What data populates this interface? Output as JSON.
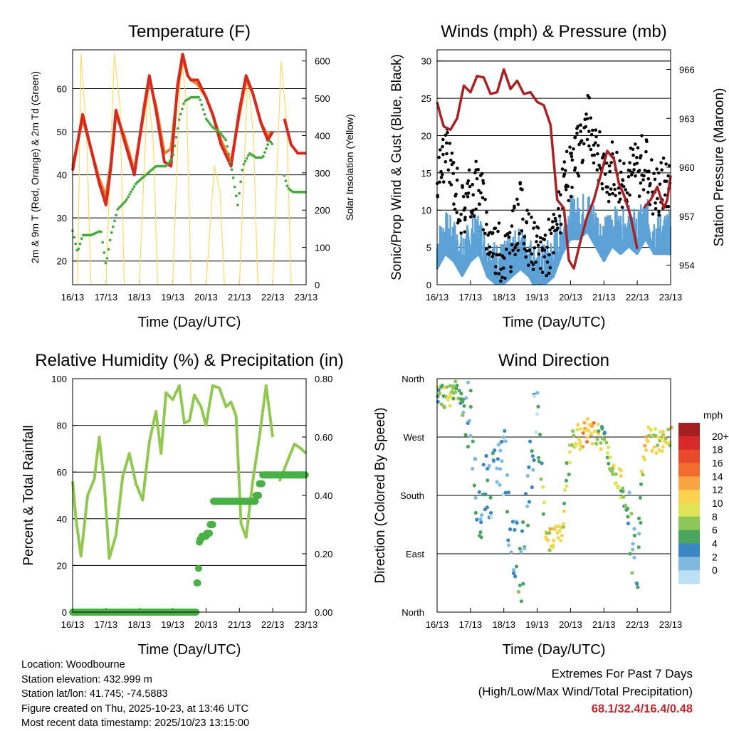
{
  "colors": {
    "temp_2m": "#d42a20",
    "temp_9m": "#f07d2a",
    "dewpoint": "#4aaa42",
    "solar": "#ffd966",
    "wind_gust": "#000000",
    "wind_sonic": "#5da2d6",
    "pressure": "#a82225",
    "rh": "#92c852",
    "precip": "#49b045"
  },
  "time_ticks": [
    "16/13",
    "17/13",
    "18/13",
    "19/13",
    "20/13",
    "21/13",
    "22/13",
    "23/13"
  ],
  "charts": {
    "temperature": {
      "title": "Temperature (F)",
      "xlabel": "Time (Day/UTC)",
      "ylabel_left": "2m & 9m T (Red, Orange) & 2m Td (Green)",
      "ylabel_right": "Solar Insolation (Yellow)",
      "left_ticks": [
        "20",
        "30",
        "40",
        "50",
        "60"
      ],
      "right_ticks": [
        "0",
        "100",
        "200",
        "300",
        "400",
        "500",
        "600"
      ]
    },
    "winds": {
      "title": "Winds (mph) & Pressure (mb)",
      "xlabel": "Time (Day/UTC)",
      "ylabel_left": "Sonic/Prop Wind & Gust (Blue, Black)",
      "ylabel_right": "Station Pressure (Maroon)",
      "left_ticks": [
        "0",
        "5",
        "10",
        "15",
        "20",
        "25",
        "30"
      ],
      "right_ticks": [
        "954",
        "957",
        "960",
        "963",
        "966"
      ]
    },
    "humidity": {
      "title": "Relative Humidity (%) & Precipitation (in)",
      "xlabel": "Time (Day/UTC)",
      "ylabel_left": "Percent & Total Rainfall",
      "left_ticks": [
        "0",
        "20",
        "40",
        "60",
        "80",
        "100"
      ],
      "right_ticks": [
        "0.00",
        "0.20",
        "0.40",
        "0.60",
        "0.80"
      ]
    },
    "direction": {
      "title": "Wind Direction",
      "xlabel": "Time (Day/UTC)",
      "ylabel_left": "Direction (Colored By Speed)",
      "dir_ticks": [
        "North",
        "West",
        "South",
        "East",
        "North"
      ],
      "legend_title": "mph",
      "legend_labels": [
        "20+",
        "18",
        "16",
        "14",
        "12",
        "10",
        "8",
        "6",
        "4",
        "2",
        "0"
      ],
      "legend_colors": [
        "#a51e22",
        "#d7282a",
        "#ea4a2c",
        "#f26b2f",
        "#f8a442",
        "#fbd250",
        "#dfe457",
        "#8cc657",
        "#4aa65e",
        "#3c86c2",
        "#7fb9e0",
        "#bde0f5"
      ]
    }
  },
  "chart_data": [
    {
      "type": "line",
      "title": "Temperature (F)",
      "xlabel": "Time (Day/UTC)",
      "ylabel": "2m & 9m T (Red, Orange) & 2m Td (Green)",
      "y2label": "Solar Insolation (Yellow)",
      "xlim": [
        0,
        7
      ],
      "ylim": [
        14.5,
        69
      ],
      "y2lim": [
        0,
        630
      ],
      "series": [
        {
          "name": "2m T",
          "axis": "left",
          "x": [
            0,
            0.3,
            0.55,
            0.8,
            1.0,
            1.15,
            1.3,
            1.55,
            1.85,
            2.15,
            2.3,
            2.5,
            2.75,
            2.95,
            3.15,
            3.3,
            3.45,
            3.55,
            3.75,
            4.0,
            4.2,
            4.45,
            4.75,
            5.0,
            5.2,
            5.4,
            5.65,
            5.85,
            6.0,
            6.2,
            6.35,
            6.55,
            6.75,
            7.0
          ],
          "y": [
            41,
            54,
            46,
            38,
            33,
            42,
            55,
            48,
            40,
            56,
            63,
            55,
            43,
            42,
            61,
            68,
            63,
            62,
            62,
            58,
            54,
            47,
            42,
            55,
            63,
            59,
            52,
            48,
            50,
            null,
            53,
            47,
            45,
            45
          ]
        },
        {
          "name": "9m T",
          "axis": "left",
          "x": [
            0,
            0.3,
            0.55,
            0.8,
            1.0,
            1.15,
            1.3,
            1.55,
            1.85,
            2.15,
            2.3,
            2.5,
            2.75,
            2.95,
            3.15,
            3.3,
            3.45,
            3.55,
            3.75,
            4.0,
            4.2,
            4.45,
            4.75,
            5.0,
            5.2,
            5.4,
            5.65,
            5.85,
            6.0
          ],
          "y": [
            42,
            53,
            46,
            39,
            35,
            43,
            54,
            49,
            41,
            55,
            62,
            56,
            45,
            46,
            60,
            67,
            63,
            62,
            61,
            58,
            54,
            48,
            43,
            54,
            62,
            59,
            52,
            49,
            50
          ]
        },
        {
          "name": "2m Td",
          "axis": "left",
          "x": [
            0,
            0.15,
            0.3,
            0.55,
            0.85,
            1.0,
            1.15,
            1.35,
            1.6,
            1.9,
            2.2,
            2.5,
            2.8,
            3.0,
            3.2,
            3.35,
            3.55,
            3.8,
            4.0,
            4.2,
            4.4,
            4.6,
            4.8,
            4.95,
            5.1,
            5.3,
            5.5,
            5.7,
            5.9,
            6.0,
            null,
            6.3,
            6.45,
            6.6,
            6.8,
            7.0
          ],
          "y": [
            27,
            22,
            26,
            26,
            27,
            19,
            26,
            32,
            34,
            38,
            40,
            42,
            42,
            44,
            53,
            57,
            58,
            58,
            53,
            51,
            50,
            48,
            40,
            33,
            42,
            45,
            44,
            44,
            48,
            47,
            null,
            41,
            37,
            36,
            36,
            36
          ]
        },
        {
          "name": "Solar Insolation",
          "axis": "right",
          "x": [
            0.15,
            0.25,
            0.42,
            0.55,
            1.0,
            1.25,
            1.42,
            1.55,
            2.0,
            2.25,
            2.42,
            2.55,
            3.0,
            3.25,
            3.42,
            3.55,
            4.0,
            4.25,
            4.42,
            4.55,
            5.0,
            5.25,
            5.42,
            5.55,
            6.0,
            6.25,
            6.42,
            6.55
          ],
          "y": [
            0,
            620,
            400,
            0,
            0,
            620,
            480,
            0,
            0,
            530,
            380,
            0,
            0,
            620,
            480,
            0,
            0,
            320,
            250,
            0,
            0,
            560,
            400,
            0,
            0,
            600,
            430,
            0
          ]
        }
      ]
    },
    {
      "type": "scatter",
      "title": "Winds (mph) & Pressure (mb)",
      "xlabel": "Time (Day/UTC)",
      "ylabel": "Sonic/Prop Wind & Gust (Blue, Black)",
      "y2label": "Station Pressure (Maroon)",
      "xlim": [
        0,
        7
      ],
      "ylim": [
        0,
        31.5
      ],
      "y2lim": [
        952.8,
        967.2
      ],
      "series": [
        {
          "name": "Gust",
          "axis": "left",
          "x": [
            0,
            0.25,
            0.5,
            0.75,
            1.0,
            1.25,
            1.5,
            1.75,
            2.0,
            2.25,
            2.5,
            2.75,
            3.0,
            3.25,
            3.5,
            3.75,
            4.0,
            4.25,
            4.5,
            4.75,
            5.0,
            5.25,
            5.5,
            5.75,
            6.0,
            6.25,
            6.5,
            6.75,
            7.0
          ],
          "y": [
            14,
            18,
            14,
            10,
            12,
            14,
            7,
            5,
            4,
            6,
            10,
            6,
            4,
            5,
            6,
            12,
            15,
            18,
            22,
            19,
            14,
            16,
            14,
            15,
            15,
            17,
            12,
            13,
            14
          ]
        },
        {
          "name": "Sonic/Prop Wind",
          "axis": "left",
          "x": [
            0,
            0.25,
            0.5,
            0.75,
            1.0,
            1.25,
            1.5,
            1.75,
            2.0,
            2.25,
            2.5,
            2.75,
            3.0,
            3.25,
            3.5,
            3.75,
            4.0,
            4.25,
            4.5,
            4.75,
            5.0,
            5.25,
            5.5,
            5.75,
            6.0,
            6.25,
            6.5,
            6.75,
            7.0
          ],
          "y": [
            5,
            7,
            6,
            4,
            6,
            7,
            4,
            3,
            3,
            4,
            5,
            4,
            2,
            3,
            4,
            7,
            9,
            9,
            10,
            8,
            6,
            8,
            7,
            8,
            7,
            9,
            7,
            7,
            7
          ]
        },
        {
          "name": "Station Pressure",
          "axis": "right",
          "x": [
            0,
            0.1,
            0.2,
            0.4,
            0.6,
            0.8,
            1.0,
            1.2,
            1.4,
            1.6,
            1.8,
            2.0,
            2.2,
            2.4,
            2.6,
            2.8,
            3.0,
            3.2,
            3.4,
            3.6,
            3.8,
            3.95,
            4.1,
            4.3,
            4.5,
            4.7,
            4.9,
            5.1,
            5.3,
            5.45,
            5.6,
            5.8,
            6.0,
            null,
            6.2,
            6.4,
            6.6,
            6.8,
            6.9,
            7.0
          ],
          "y": [
            964.0,
            963.2,
            962.5,
            962.3,
            963.0,
            965.0,
            964.6,
            965.6,
            965.5,
            964.5,
            964.6,
            966.0,
            964.8,
            965.3,
            964.5,
            964.6,
            964.0,
            963.8,
            962.6,
            958.0,
            957.5,
            954.3,
            953.8,
            955.5,
            957.0,
            958.0,
            959.5,
            961.0,
            960.5,
            959.0,
            958.3,
            957.0,
            955.0,
            null,
            957.5,
            958.0,
            958.8,
            957.5,
            958.0,
            959.5
          ]
        }
      ]
    },
    {
      "type": "line",
      "title": "Relative Humidity (%) & Precipitation (in)",
      "xlabel": "Time (Day/UTC)",
      "ylabel": "Percent & Total Rainfall",
      "xlim": [
        0,
        7
      ],
      "ylim": [
        0,
        100
      ],
      "y2lim": [
        0,
        0.8
      ],
      "series": [
        {
          "name": "Relative Humidity",
          "axis": "left",
          "x": [
            0,
            0.1,
            0.25,
            0.45,
            0.65,
            0.8,
            0.95,
            1.1,
            1.3,
            1.5,
            1.7,
            1.9,
            2.1,
            2.3,
            2.5,
            2.65,
            2.8,
            3.0,
            3.2,
            3.35,
            3.5,
            3.65,
            3.85,
            4.0,
            4.2,
            4.4,
            4.6,
            4.75,
            4.9,
            5.05,
            5.2,
            5.4,
            5.6,
            5.8,
            6.0,
            null,
            6.2,
            6.45,
            6.65,
            6.85,
            7.0
          ],
          "y": [
            56,
            40,
            24,
            50,
            57,
            75,
            55,
            23,
            33,
            58,
            68,
            55,
            48,
            73,
            86,
            68,
            94,
            91,
            97,
            81,
            82,
            93,
            88,
            80,
            97,
            96,
            88,
            90,
            84,
            38,
            32,
            56,
            75,
            97,
            75,
            null,
            56,
            65,
            72,
            70,
            68
          ]
        },
        {
          "name": "Total Precipitation",
          "axis": "right",
          "x": [
            0,
            3.65,
            3.7,
            3.72,
            3.75,
            3.78,
            3.8,
            3.85,
            4.0,
            4.1,
            4.2,
            4.4,
            5.0,
            5.2,
            5.5,
            5.6,
            5.7,
            5.9,
            7.0
          ],
          "y": [
            0,
            0,
            0.05,
            0.1,
            0.15,
            0.24,
            0.25,
            0.26,
            0.27,
            0.3,
            0.38,
            0.38,
            0.38,
            0.38,
            0.4,
            0.44,
            0.47,
            0.47,
            0.47
          ]
        }
      ]
    },
    {
      "type": "scatter",
      "title": "Wind Direction",
      "xlabel": "Time (Day/UTC)",
      "ylabel": "Direction (Colored By Speed)",
      "xlim": [
        0,
        7
      ],
      "ylim": [
        0,
        360
      ],
      "y_tick_labels": [
        "North",
        "West",
        "South",
        "East",
        "North"
      ],
      "series": [
        {
          "name": "Wind Direction (deg)",
          "x": [
            0,
            0.25,
            0.5,
            0.75,
            1.0,
            1.25,
            1.5,
            1.75,
            2.0,
            2.25,
            2.5,
            2.75,
            3.0,
            3.25,
            3.5,
            3.75,
            4.0,
            4.25,
            4.5,
            4.75,
            5.0,
            5.25,
            5.5,
            5.75,
            6.0,
            6.25,
            6.5,
            6.75,
            7.0
          ],
          "y": [
            335,
            330,
            340,
            320,
            310,
            140,
            200,
            210,
            230,
            120,
            60,
            190,
            325,
            110,
            120,
            130,
            260,
            270,
            280,
            275,
            265,
            210,
            200,
            130,
            80,
            270,
            265,
            260,
            265
          ],
          "speed_mph": [
            6,
            10,
            8,
            6,
            4,
            4,
            4,
            3,
            3,
            4,
            5,
            4,
            2,
            9,
            11,
            10,
            8,
            12,
            14,
            12,
            6,
            10,
            9,
            5,
            4,
            12,
            10,
            10,
            11
          ]
        }
      ]
    }
  ],
  "info": {
    "location": "Location: Woodbourne",
    "elevation": "Station elevation: 432.999 m",
    "latlon": "Station lat/lon: 41.745; -74.5883",
    "created": "Figure created on Thu, 2025-10-23, at 13:46 UTC",
    "recent": "Most recent data timestamp: 2025/10/23 13:15:00"
  },
  "extremes": {
    "title": "Extremes For Past 7 Days",
    "subtitle": "(High/Low/Max Wind/Total Precipitation)",
    "values": "68.1/32.4/16.4/0.48"
  }
}
